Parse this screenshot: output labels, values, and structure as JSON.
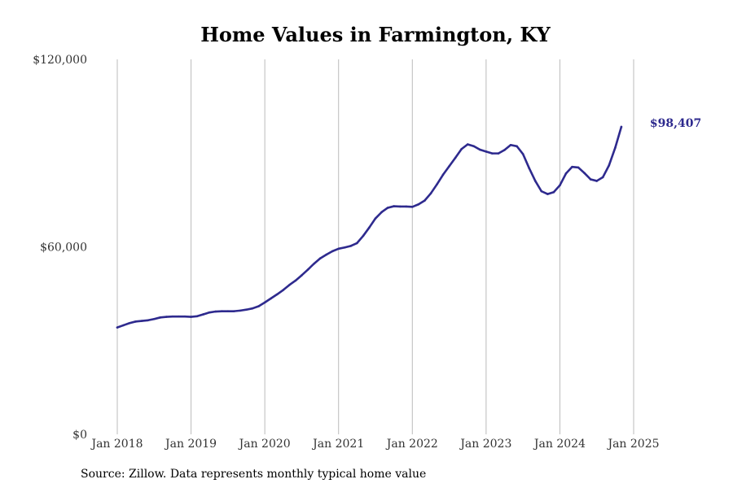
{
  "chart_data": {
    "type": "line",
    "title": "Home Values in Farmington, KY",
    "xlabel": "",
    "ylabel": "",
    "grid": "vertical",
    "x_ticks": [
      "Jan 2018",
      "Jan 2019",
      "Jan 2020",
      "Jan 2021",
      "Jan 2022",
      "Jan 2023",
      "Jan 2024",
      "Jan 2025"
    ],
    "y_ticks": [
      "$0",
      "$60,000",
      "$120,000"
    ],
    "ylim": [
      0,
      120000
    ],
    "xlim": [
      "2018-01",
      "2025-01"
    ],
    "series": [
      {
        "color": "#2e2a8e",
        "end_label": "$98,407",
        "points": [
          [
            "2018-01",
            34200
          ],
          [
            "2018-02",
            34900
          ],
          [
            "2018-03",
            35600
          ],
          [
            "2018-04",
            36100
          ],
          [
            "2018-05",
            36300
          ],
          [
            "2018-06",
            36500
          ],
          [
            "2018-07",
            36900
          ],
          [
            "2018-08",
            37400
          ],
          [
            "2018-09",
            37600
          ],
          [
            "2018-10",
            37700
          ],
          [
            "2018-11",
            37700
          ],
          [
            "2018-12",
            37700
          ],
          [
            "2019-01",
            37600
          ],
          [
            "2019-02",
            37800
          ],
          [
            "2019-03",
            38400
          ],
          [
            "2019-04",
            39000
          ],
          [
            "2019-05",
            39300
          ],
          [
            "2019-06",
            39400
          ],
          [
            "2019-07",
            39400
          ],
          [
            "2019-08",
            39400
          ],
          [
            "2019-09",
            39600
          ],
          [
            "2019-10",
            39900
          ],
          [
            "2019-11",
            40300
          ],
          [
            "2019-12",
            41000
          ],
          [
            "2020-01",
            42200
          ],
          [
            "2020-02",
            43500
          ],
          [
            "2020-03",
            44800
          ],
          [
            "2020-04",
            46200
          ],
          [
            "2020-05",
            47800
          ],
          [
            "2020-06",
            49200
          ],
          [
            "2020-07",
            50900
          ],
          [
            "2020-08",
            52700
          ],
          [
            "2020-09",
            54600
          ],
          [
            "2020-10",
            56300
          ],
          [
            "2020-11",
            57500
          ],
          [
            "2020-12",
            58600
          ],
          [
            "2021-01",
            59400
          ],
          [
            "2021-02",
            59800
          ],
          [
            "2021-03",
            60300
          ],
          [
            "2021-04",
            61200
          ],
          [
            "2021-05",
            63500
          ],
          [
            "2021-06",
            66200
          ],
          [
            "2021-07",
            69100
          ],
          [
            "2021-08",
            71100
          ],
          [
            "2021-09",
            72500
          ],
          [
            "2021-10",
            73000
          ],
          [
            "2021-11",
            72900
          ],
          [
            "2021-12",
            72900
          ],
          [
            "2022-01",
            72800
          ],
          [
            "2022-02",
            73600
          ],
          [
            "2022-03",
            74800
          ],
          [
            "2022-04",
            77100
          ],
          [
            "2022-05",
            80000
          ],
          [
            "2022-06",
            83100
          ],
          [
            "2022-07",
            85800
          ],
          [
            "2022-08",
            88500
          ],
          [
            "2022-09",
            91300
          ],
          [
            "2022-10",
            92800
          ],
          [
            "2022-11",
            92200
          ],
          [
            "2022-12",
            91100
          ],
          [
            "2023-01",
            90500
          ],
          [
            "2023-02",
            89900
          ],
          [
            "2023-03",
            89900
          ],
          [
            "2023-04",
            91000
          ],
          [
            "2023-05",
            92600
          ],
          [
            "2023-06",
            92200
          ],
          [
            "2023-07",
            89700
          ],
          [
            "2023-08",
            85200
          ],
          [
            "2023-09",
            81100
          ],
          [
            "2023-10",
            77800
          ],
          [
            "2023-11",
            76900
          ],
          [
            "2023-12",
            77500
          ],
          [
            "2024-01",
            79700
          ],
          [
            "2024-02",
            83500
          ],
          [
            "2024-03",
            85600
          ],
          [
            "2024-04",
            85400
          ],
          [
            "2024-05",
            83600
          ],
          [
            "2024-06",
            81600
          ],
          [
            "2024-07",
            81100
          ],
          [
            "2024-08",
            82300
          ],
          [
            "2024-09",
            86100
          ],
          [
            "2024-10",
            91700
          ],
          [
            "2024-11",
            98407
          ]
        ]
      }
    ]
  },
  "footer": {
    "source": "Source: Zillow. Data represents monthly typical home value"
  }
}
